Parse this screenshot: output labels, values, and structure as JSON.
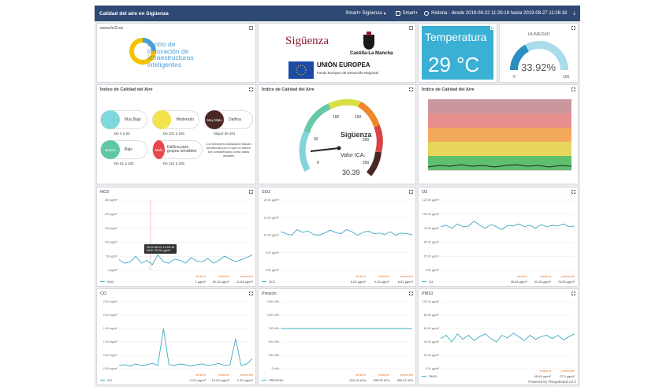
{
  "topbar": {
    "title": "Calidad del aire en Sigüenza",
    "selector": "Smart+ Sigüenza",
    "monitor": "Smart+",
    "history": "Historia - desde 2019-08-22 11:26:18 hasta 2019-08-27 11:26:18"
  },
  "logo": {
    "url": "www.fci3.es",
    "text_lines": [
      "centro de",
      "innovación de",
      "infraestructuras",
      "inteligentes"
    ]
  },
  "sponsors": {
    "town": "Sigüenza",
    "region": "Castilla-La Mancha",
    "eu": "UNIÓN EUROPEA",
    "fund": "Fondo Europeo de Desarrollo Regional"
  },
  "temperature": {
    "label": "Temperatura",
    "value": "29 °C"
  },
  "humidity": {
    "label": "HUMEDAD",
    "value": "33.92%",
    "fraction": 0.3392,
    "min": "0",
    "max": "100"
  },
  "aqi_legend": {
    "title": "Índice de Calidad del Aire",
    "items": [
      {
        "name": "Muy Bajo",
        "range": "De 0 a 50",
        "color": "#7ed8de"
      },
      {
        "name": "Moderado",
        "range": "De 101 a 150",
        "color": "#f2e34b"
      },
      {
        "name": "Dañina",
        "range": "Mayor de 201",
        "dot": "Muy Malo",
        "color": "#4a2724"
      },
      {
        "name": "Bajo",
        "range": "De 51 a 100",
        "dot": "Bueno",
        "color": "#5ec8a6"
      },
      {
        "name": "Dañina para grupos sensibles",
        "range": "De 151 a 200",
        "dot": "Malo",
        "color": "#e8484b"
      }
    ],
    "note": "Los sensores instalados marcan tendencias por lo que no deben ser considerados como datos oficiales"
  },
  "gauge": {
    "title": "Índice de Calidad del Aire",
    "location": "Sigüenza",
    "value_label": "Valor ICA:",
    "value": "30.39",
    "ticks": [
      "0",
      "50",
      "100",
      "150",
      "200",
      "250"
    ]
  },
  "history_panel": {
    "title": "Índice de Calidad del Aire"
  },
  "charts": [
    {
      "title": "NO2",
      "series": "NO2",
      "yticks": [
        "250 µg/m³",
        "200 µg/m³",
        "150 µg/m³",
        "100 µg/m³",
        "50 µg/m³",
        "0 µg/m³"
      ],
      "stats": [
        "1 µg/m³",
        "60.16 µg/m³",
        "21.84 µg/m³"
      ],
      "tooltip_date": "2019-08-23 14:26:18",
      "tooltip_value": "NO2: 33.00 µg/m³"
    },
    {
      "title": "SO2",
      "series": "SO2",
      "yticks": [
        "20.00 µg/m³",
        "15.00 µg/m³",
        "10.00 µg/m³",
        "5.00 µg/m³",
        "0.00 µg/m³"
      ],
      "stats": [
        "5.03 µg/m³",
        "9.28 µg/m³",
        "6.81 µg/m³"
      ]
    },
    {
      "title": "O3",
      "series": "O3",
      "yticks": [
        "125.00 µg/m³",
        "100.00 µg/m³",
        "75.00 µg/m³",
        "50.00 µg/m³",
        "25.00 µg/m³",
        "0.00 µg/m³"
      ],
      "stats": [
        "35.48 µg/m³",
        "91.28 µg/m³",
        "76.55 µg/m³"
      ]
    },
    {
      "title": "CO",
      "series": "CO",
      "yticks": [
        "2.50 mg/m³",
        "2.00 mg/m³",
        "1.50 mg/m³",
        "1.00 mg/m³",
        "0.50 mg/m³",
        "0.00 mg/m³"
      ],
      "stats": [
        "0.09 mg/m³",
        "10.03 mg/m³",
        "1.52 mg/m³"
      ]
    },
    {
      "title": "Presión",
      "series": "PRESION",
      "yticks": [
        "1250 hPa",
        "1000 hPa",
        "750 hPa",
        "500 hPa",
        "250 hPa",
        "0 hPa"
      ],
      "stats": [
        "904.04 hPa",
        "908.90 hPa",
        "906.11 hPa"
      ]
    },
    {
      "title": "PM10",
      "series": "PM10",
      "yticks": [
        "100.00 µg/m³",
        "80.00 µg/m³",
        "60.00 µg/m³",
        "40.00 µg/m³",
        "20.00 µg/m³",
        "0.00 µg/m³"
      ],
      "stats": [
        "",
        "45.48 µg/m³",
        "27.5 µg/m³"
      ]
    }
  ],
  "stat_headers": [
    "mínimo",
    "máximo",
    "promedio"
  ],
  "footer": "Powered by Thingsboard v.2.4"
}
